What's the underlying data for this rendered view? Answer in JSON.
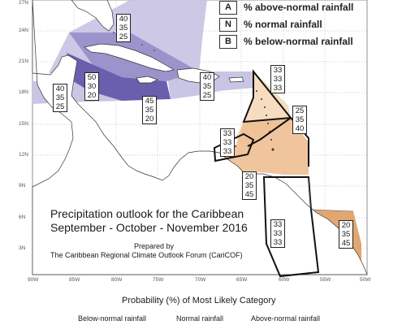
{
  "map": {
    "legend": [
      {
        "key": "A",
        "label": "% above-normal rainfall"
      },
      {
        "key": "N",
        "label": "% normal rainfall"
      },
      {
        "key": "B",
        "label": "% below-normal rainfall"
      }
    ],
    "title_line1": "Precipitation outlook for the Caribbean",
    "title_line2": "September - October - November 2016",
    "prepared_line1": "Prepared by",
    "prepared_line2": "The Caribbean Regional Climate Outlook Forum (CariCOF)",
    "latitude_labels": [
      "27N",
      "24N",
      "21N",
      "18N",
      "15N",
      "12N",
      "9N",
      "6N",
      "3N"
    ],
    "longitude_labels": [
      "90W",
      "85W",
      "80W",
      "75W",
      "70W",
      "65W",
      "60W",
      "55W",
      "50W"
    ],
    "colorbar_title": "Probability (%) of Most Likely Category",
    "categories": [
      "Below-normal rainfall",
      "Normal rainfall",
      "Above-normal rainfall"
    ],
    "probability_boxes": [
      {
        "id": "bahamas-north",
        "values": [
          "40",
          "35",
          "25"
        ]
      },
      {
        "id": "cayman-jamaica",
        "values": [
          "50",
          "30",
          "20"
        ]
      },
      {
        "id": "belize",
        "values": [
          "40",
          "35",
          "25"
        ]
      },
      {
        "id": "caribbean-sea-west",
        "values": [
          "45",
          "35",
          "20"
        ]
      },
      {
        "id": "hispaniola-pr",
        "values": [
          "40",
          "35",
          "25"
        ]
      },
      {
        "id": "leeward-islands",
        "values": [
          "33",
          "33",
          "33"
        ]
      },
      {
        "id": "barbados-east",
        "values": [
          "25",
          "35",
          "40"
        ]
      },
      {
        "id": "abc-islands",
        "values": [
          "33",
          "33",
          "33"
        ]
      },
      {
        "id": "trinidad-tobago",
        "values": [
          "20",
          "35",
          "45"
        ]
      },
      {
        "id": "guyana",
        "values": [
          "33",
          "33",
          "33"
        ]
      },
      {
        "id": "french-guiana",
        "values": [
          "20",
          "35",
          "45"
        ]
      }
    ],
    "colors": {
      "above_dark": "#6a5fad",
      "above_mid": "#9b94cc",
      "above_light": "#c9c5e5",
      "below_light": "#f7dcc0",
      "below_mid": "#eebf92",
      "below_dark": "#d9a06d",
      "outline": "#111111",
      "land": "#ffffff",
      "coast": "#333333"
    }
  }
}
